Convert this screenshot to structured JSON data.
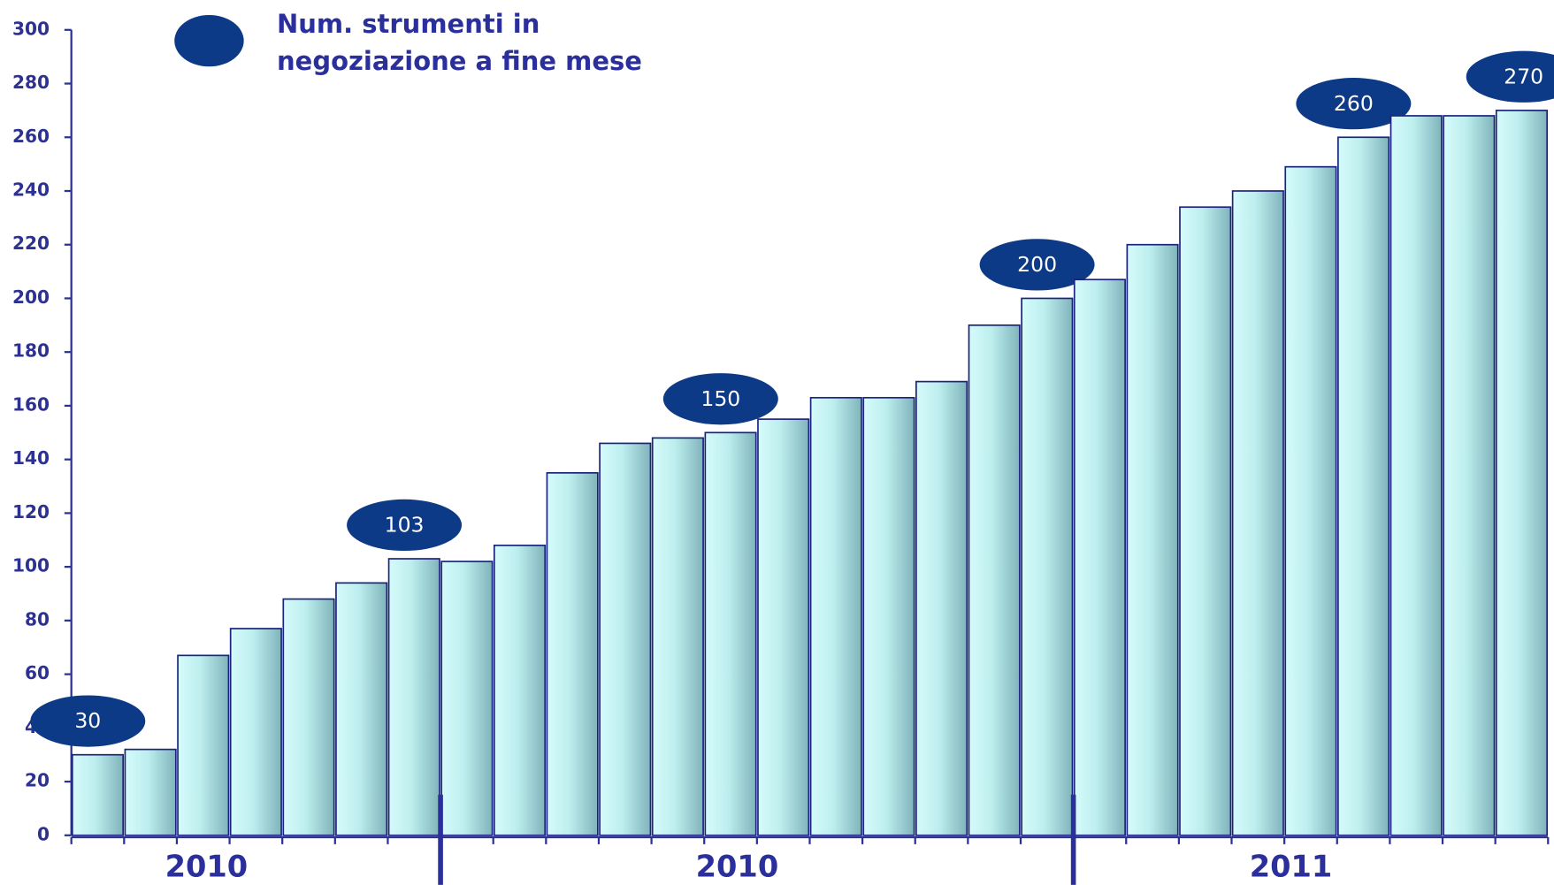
{
  "chart_data": {
    "type": "bar",
    "series": [
      {
        "name": "Num. strumenti in negoziazione a fine mese",
        "color": "#0d3a86",
        "values": [
          30,
          32,
          67,
          77,
          88,
          94,
          103,
          102,
          108,
          135,
          146,
          148,
          150,
          155,
          163,
          163,
          169,
          190,
          200,
          207,
          220,
          234,
          240,
          249,
          260,
          268,
          268,
          270
        ],
        "value_labels": [
          "30",
          null,
          null,
          null,
          null,
          null,
          "103",
          null,
          null,
          null,
          null,
          null,
          "150",
          null,
          null,
          null,
          null,
          null,
          "200",
          null,
          null,
          null,
          null,
          null,
          "260",
          null,
          null,
          "270"
        ]
      }
    ],
    "categories": [
      null,
      null,
      null,
      null,
      null,
      null,
      null,
      null,
      null,
      null,
      null,
      null,
      null,
      null,
      null,
      null,
      null,
      null,
      null,
      null,
      null,
      null,
      null,
      null,
      null,
      null,
      null,
      null
    ],
    "groups": [
      {
        "label": "2010",
        "count": 7
      },
      {
        "label": "2010",
        "count": 12
      },
      {
        "label": "2011",
        "count": 9
      }
    ],
    "ylim": [
      0,
      300
    ],
    "yticks": [
      0,
      20,
      40,
      60,
      80,
      100,
      120,
      140,
      160,
      180,
      200,
      220,
      240,
      260,
      280,
      300
    ]
  }
}
